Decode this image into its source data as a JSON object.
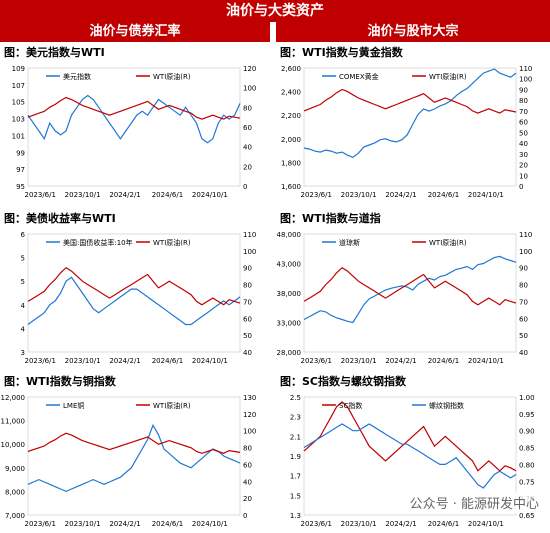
{
  "page_title": "油价与大类资产",
  "sections": {
    "left": "油价与债券汇率",
    "right": "油价与股市大宗"
  },
  "watermark": "公众号 · 能源研发中心",
  "colors": {
    "red": "#c00000",
    "blue": "#1f77d4"
  },
  "chart_data": [
    {
      "type": "line",
      "title": "图：美元指数与WTI",
      "x_ticks": [
        "2023/6/1",
        "2023/10/1",
        "2024/2/1",
        "2024/6/1",
        "2024/10/1"
      ],
      "left_axis": {
        "ticks": [
          "95",
          "97",
          "99",
          "101",
          "103",
          "105",
          "107",
          "109"
        ],
        "range": [
          95,
          110
        ]
      },
      "right_axis": {
        "ticks": [
          "0",
          "20",
          "40",
          "60",
          "80",
          "100",
          "120"
        ],
        "range": [
          0,
          120
        ]
      },
      "series": [
        {
          "name": "美元指数",
          "axis": "left",
          "color": "#1f77d4",
          "values": [
            104,
            103,
            102,
            101,
            103,
            102,
            101.5,
            102,
            104,
            105,
            106,
            106.5,
            106,
            105,
            104,
            103,
            102,
            101,
            102,
            103,
            104,
            104.5,
            104,
            105,
            106,
            105.5,
            105,
            104.5,
            104,
            105,
            104,
            103,
            101,
            100.5,
            101,
            103,
            104,
            103.5,
            104,
            105.5
          ]
        },
        {
          "name": "WTI原油(R)",
          "axis": "right",
          "color": "#c00000",
          "values": [
            70,
            72,
            74,
            76,
            80,
            83,
            87,
            90,
            88,
            85,
            82,
            80,
            78,
            76,
            74,
            72,
            74,
            76,
            78,
            80,
            82,
            84,
            86,
            82,
            78,
            80,
            82,
            80,
            78,
            76,
            74,
            70,
            68,
            70,
            72,
            70,
            68,
            71,
            70,
            69
          ]
        }
      ]
    },
    {
      "type": "line",
      "title": "图：WTI指数与黄金指数",
      "x_ticks": [
        "2023/6/1",
        "2023/10/1",
        "2024/2/1",
        "2024/6/1",
        "2024/10/1"
      ],
      "left_axis": {
        "ticks": [
          "1,600",
          "1,800",
          "2,000",
          "2,200",
          "2,400",
          "2,600"
        ],
        "range": [
          1600,
          2750
        ]
      },
      "right_axis": {
        "ticks": [
          "0",
          "10",
          "20",
          "30",
          "40",
          "50",
          "60",
          "70",
          "80",
          "90",
          "100",
          "110"
        ],
        "range": [
          0,
          110
        ]
      },
      "series": [
        {
          "name": "COMEX黄金",
          "axis": "left",
          "color": "#1f77d4",
          "values": [
            1970,
            1960,
            1940,
            1930,
            1950,
            1940,
            1920,
            1930,
            1900,
            1880,
            1920,
            1980,
            2000,
            2020,
            2050,
            2060,
            2040,
            2030,
            2050,
            2100,
            2200,
            2300,
            2350,
            2330,
            2350,
            2380,
            2400,
            2430,
            2480,
            2520,
            2550,
            2600,
            2650,
            2700,
            2720,
            2740,
            2700,
            2680,
            2660,
            2700
          ]
        },
        {
          "name": "WTI原油(R)",
          "axis": "right",
          "color": "#c00000",
          "values": [
            70,
            72,
            74,
            76,
            80,
            83,
            87,
            90,
            88,
            85,
            82,
            80,
            78,
            76,
            74,
            72,
            74,
            76,
            78,
            80,
            82,
            84,
            86,
            82,
            78,
            80,
            82,
            80,
            78,
            76,
            74,
            70,
            68,
            70,
            72,
            70,
            68,
            71,
            70,
            69
          ]
        }
      ]
    },
    {
      "type": "line",
      "title": "图：美债收益率与WTI",
      "x_ticks": [
        "2023/6/1",
        "2023/10/1",
        "2024/2/1",
        "2024/6/1",
        "2024/10/1"
      ],
      "left_axis": {
        "ticks": [
          "3",
          "4",
          "4",
          "5",
          "5",
          "6"
        ],
        "range": [
          3,
          6
        ]
      },
      "right_axis": {
        "ticks": [
          "40",
          "50",
          "60",
          "70",
          "80",
          "90",
          "100",
          "110"
        ],
        "range": [
          40,
          110
        ]
      },
      "series": [
        {
          "name": "美国:国债收益率:10年",
          "axis": "left",
          "color": "#1f77d4",
          "values": [
            3.7,
            3.8,
            3.9,
            4.0,
            4.2,
            4.3,
            4.5,
            4.8,
            4.9,
            4.7,
            4.5,
            4.3,
            4.1,
            4.0,
            4.1,
            4.2,
            4.3,
            4.4,
            4.5,
            4.6,
            4.6,
            4.5,
            4.4,
            4.3,
            4.2,
            4.1,
            4.0,
            3.9,
            3.8,
            3.7,
            3.7,
            3.8,
            3.9,
            4.0,
            4.1,
            4.2,
            4.3,
            4.2,
            4.3,
            4.4
          ]
        },
        {
          "name": "WTI原油(R)",
          "axis": "right",
          "color": "#c00000",
          "values": [
            70,
            72,
            74,
            76,
            80,
            83,
            87,
            90,
            88,
            85,
            82,
            80,
            78,
            76,
            74,
            72,
            74,
            76,
            78,
            80,
            82,
            84,
            86,
            82,
            78,
            80,
            82,
            80,
            78,
            76,
            74,
            70,
            68,
            70,
            72,
            70,
            68,
            71,
            70,
            69
          ]
        }
      ]
    },
    {
      "type": "line",
      "title": "图：WTI指数与道指",
      "x_ticks": [
        "2023/6/1",
        "2023/10/1",
        "2024/2/1",
        "2024/6/1",
        "2024/10/1"
      ],
      "left_axis": {
        "ticks": [
          "28,000",
          "33,000",
          "38,000",
          "43,000",
          "48,000"
        ],
        "range": [
          28000,
          48000
        ]
      },
      "right_axis": {
        "ticks": [
          "40",
          "50",
          "60",
          "70",
          "80",
          "90",
          "100",
          "110"
        ],
        "range": [
          40,
          110
        ]
      },
      "series": [
        {
          "name": "道琼斯",
          "axis": "left",
          "color": "#1f77d4",
          "values": [
            33500,
            34000,
            34500,
            35000,
            34800,
            34200,
            33800,
            33500,
            33200,
            33000,
            34500,
            36000,
            37000,
            37500,
            38000,
            38500,
            38800,
            39000,
            39200,
            39000,
            38500,
            39500,
            40000,
            40500,
            40200,
            40800,
            41000,
            41500,
            42000,
            42200,
            42500,
            42000,
            42800,
            43000,
            43500,
            44000,
            44200,
            43800,
            43500,
            43200
          ]
        },
        {
          "name": "WTI原油(R)",
          "axis": "right",
          "color": "#c00000",
          "values": [
            70,
            72,
            74,
            76,
            80,
            83,
            87,
            90,
            88,
            85,
            82,
            80,
            78,
            76,
            74,
            72,
            74,
            76,
            78,
            80,
            82,
            84,
            86,
            82,
            78,
            80,
            82,
            80,
            78,
            76,
            74,
            70,
            68,
            70,
            72,
            70,
            68,
            71,
            70,
            69
          ]
        }
      ]
    },
    {
      "type": "line",
      "title": "图：WTI指数与铜指数",
      "x_ticks": [
        "2023/6/1",
        "2023/10/1",
        "2024/2/1",
        "2024/6/1",
        "2024/10/1"
      ],
      "left_axis": {
        "ticks": [
          "7,000",
          "8,000",
          "9,000",
          "10,000",
          "11,000",
          "12,000"
        ],
        "range": [
          7000,
          12000
        ]
      },
      "right_axis": {
        "ticks": [
          "0",
          "20",
          "40",
          "60",
          "80",
          "100",
          "120",
          "130"
        ],
        "range": [
          0,
          130
        ]
      },
      "series": [
        {
          "name": "LME铜",
          "axis": "left",
          "color": "#1f77d4",
          "values": [
            8300,
            8400,
            8500,
            8400,
            8300,
            8200,
            8100,
            8000,
            8100,
            8200,
            8300,
            8400,
            8500,
            8400,
            8300,
            8400,
            8500,
            8600,
            8800,
            9000,
            9400,
            9800,
            10200,
            10800,
            10400,
            9800,
            9600,
            9400,
            9200,
            9100,
            9000,
            9200,
            9400,
            9600,
            9800,
            9700,
            9500,
            9400,
            9300,
            9200
          ]
        },
        {
          "name": "WTI原油(R)",
          "axis": "right",
          "color": "#c00000",
          "values": [
            70,
            72,
            74,
            76,
            80,
            83,
            87,
            90,
            88,
            85,
            82,
            80,
            78,
            76,
            74,
            72,
            74,
            76,
            78,
            80,
            82,
            84,
            86,
            82,
            78,
            80,
            82,
            80,
            78,
            76,
            74,
            70,
            68,
            70,
            72,
            70,
            68,
            71,
            70,
            69
          ]
        }
      ]
    },
    {
      "type": "line",
      "title": "图：SC指数与螺纹钢指数",
      "x_ticks": [
        "2023/6/1",
        "2023/10/1",
        "2024/2/1",
        "2024/6/1",
        "2024/10/1"
      ],
      "left_axis": {
        "ticks": [
          "1.3",
          "1.5",
          "1.7",
          "1.9",
          "2.1",
          "2.3",
          "2.5"
        ],
        "range": [
          1.3,
          2.5
        ]
      },
      "right_axis": {
        "ticks": [
          "0.65",
          "0.70",
          "0.75",
          "0.80",
          "0.85",
          "0.90",
          "0.95",
          "1.00"
        ],
        "range": [
          0.65,
          1.0
        ]
      },
      "series": [
        {
          "name": "SC指数",
          "axis": "left",
          "color": "#c00000",
          "values": [
            1.95,
            2.0,
            2.05,
            2.1,
            2.2,
            2.3,
            2.4,
            2.45,
            2.4,
            2.3,
            2.2,
            2.1,
            2.0,
            1.95,
            1.9,
            1.85,
            1.9,
            1.95,
            2.0,
            2.05,
            2.1,
            2.15,
            2.2,
            2.1,
            2.0,
            2.05,
            2.1,
            2.05,
            2.0,
            1.95,
            1.9,
            1.85,
            1.75,
            1.8,
            1.85,
            1.8,
            1.75,
            1.8,
            1.78,
            1.75
          ]
        },
        {
          "name": "螺纹钢指数",
          "axis": "right",
          "color": "#1f77d4",
          "values": [
            0.85,
            0.86,
            0.87,
            0.88,
            0.89,
            0.9,
            0.91,
            0.92,
            0.91,
            0.9,
            0.9,
            0.91,
            0.92,
            0.91,
            0.9,
            0.89,
            0.88,
            0.87,
            0.86,
            0.86,
            0.85,
            0.84,
            0.83,
            0.82,
            0.81,
            0.8,
            0.8,
            0.81,
            0.82,
            0.8,
            0.78,
            0.76,
            0.74,
            0.73,
            0.75,
            0.77,
            0.78,
            0.77,
            0.76,
            0.77
          ]
        }
      ]
    }
  ]
}
